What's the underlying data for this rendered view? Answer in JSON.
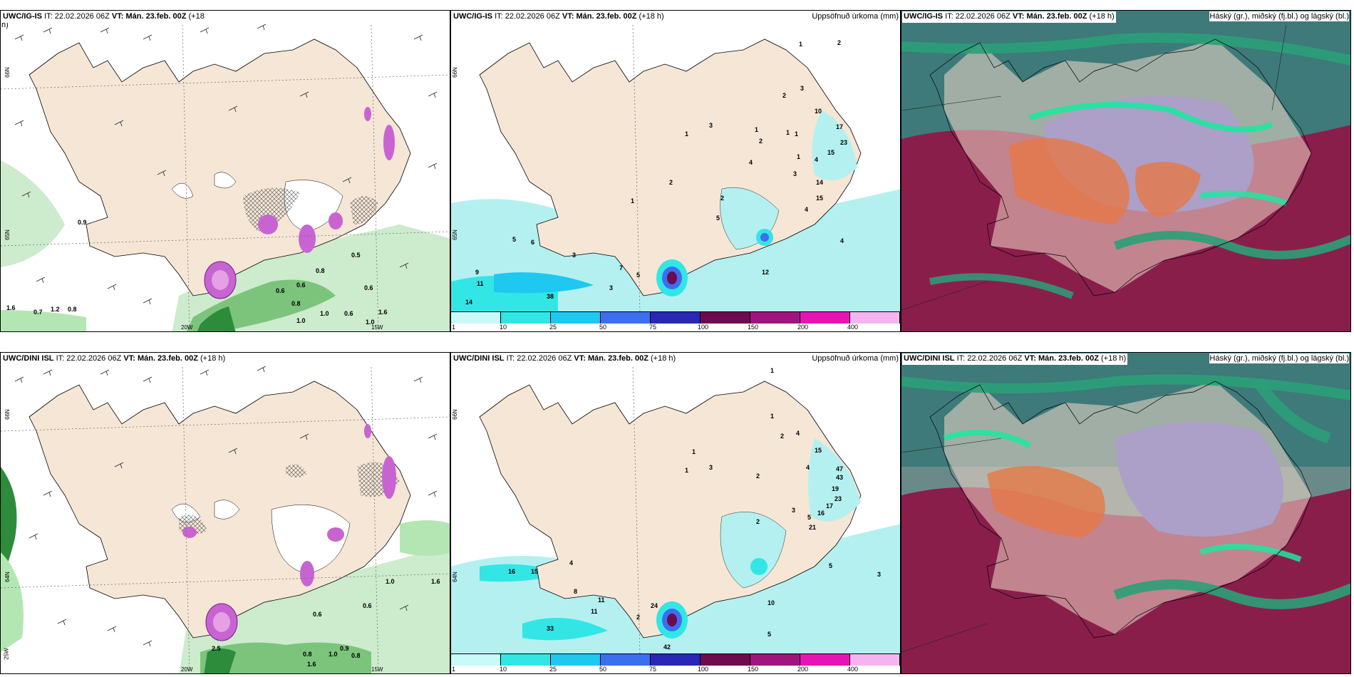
{
  "rows": [
    {
      "panels": [
        {
          "model": "UWC/IG-IS",
          "it_label": "IT:",
          "it": "22.02.2026 06Z",
          "vt_label": "VT:",
          "vt": "Mán. 23.feb. 00Z",
          "lead": "(+18",
          "lead_wrap": "h)",
          "right_title": "",
          "kind": "wind",
          "values": [
            "0.9",
            "0.5",
            "0.8",
            "0.6",
            "0.6",
            "0.8",
            "0.6",
            "1.0",
            "0.6",
            "1.0",
            "1.0",
            "1.6",
            "0.7",
            "1.2",
            "0.8",
            "1.6"
          ],
          "lat_labels": [
            "66N",
            "65N"
          ],
          "lon_labels": [
            "20W",
            "15W"
          ]
        },
        {
          "model": "UWC/IG-IS",
          "it_label": "IT:",
          "it": "22.02.2026 06Z",
          "vt_label": "VT:",
          "vt": "Mán. 23.feb. 00Z",
          "lead": "(+18 h)",
          "right_title": "Uppsöfnuð úrkoma (mm)",
          "kind": "precip",
          "values": [
            "1",
            "2",
            "2",
            "3",
            "10",
            "3",
            "1",
            "1",
            "1",
            "2",
            "1",
            "17",
            "23",
            "15",
            "1",
            "4",
            "4",
            "2",
            "3",
            "14",
            "1",
            "15",
            "4",
            "5",
            "2",
            "4",
            "5",
            "6",
            "3",
            "7",
            "5",
            "9",
            "11",
            "3",
            "38",
            "14",
            "12"
          ],
          "lat_labels": [
            "66N",
            "65N"
          ]
        },
        {
          "model": "UWC/IG-IS",
          "it_label": "IT:",
          "it": "22.02.2026 06Z",
          "vt_label": "VT:",
          "vt": "Mán. 23.feb. 00Z",
          "lead": "(+18 h)",
          "right_title": "Háský (gr.), miðský (fj.bl.) og lágský (bl.)",
          "kind": "cloud"
        }
      ]
    },
    {
      "panels": [
        {
          "model": "UWC/DINI ISL",
          "it_label": "IT:",
          "it": "22.02.2026 06Z",
          "vt_label": "VT:",
          "vt": "Mán. 23.feb. 00Z",
          "lead": "(+18 h)",
          "right_title": "",
          "kind": "wind",
          "values": [
            "1.0",
            "1.6",
            "0.6",
            "0.6",
            "2.5",
            "0.8",
            "1.0",
            "0.9",
            "0.8",
            "1.6"
          ],
          "lat_labels": [
            "66N",
            "64N"
          ],
          "lon_labels": [
            "20W",
            "15W",
            "25W"
          ]
        },
        {
          "model": "UWC/DINI ISL",
          "it_label": "IT:",
          "it": "22.02.2026 06Z",
          "vt_label": "VT:",
          "vt": "Mán. 23.feb. 00Z",
          "lead": "(+18 h)",
          "right_title": "Uppsöfnuð úrkoma (mm)",
          "kind": "precip",
          "values": [
            "1",
            "1",
            "2",
            "4",
            "1",
            "3",
            "1",
            "15",
            "2",
            "47",
            "43",
            "4",
            "19",
            "23",
            "17",
            "3",
            "16",
            "5",
            "21",
            "2",
            "5",
            "3",
            "16",
            "15",
            "4",
            "8",
            "11",
            "11",
            "24",
            "2",
            "10",
            "33",
            "42",
            "5"
          ],
          "lat_labels": [
            "66N",
            "64N"
          ]
        },
        {
          "model": "UWC/DINI ISL",
          "it_label": "IT:",
          "it": "22.02.2026 06Z",
          "vt_label": "VT:",
          "vt": "Mán. 23.feb. 00Z",
          "lead": "(+18 h)",
          "right_title": "Háský (gr.), miðský (fj.bl.) og lágský (bl.)",
          "kind": "cloud"
        }
      ]
    }
  ],
  "colorbar": {
    "labels": [
      "1",
      "10",
      "25",
      "50",
      "75",
      "100",
      "150",
      "200",
      "400"
    ],
    "colors": [
      "#c8fafa",
      "#32e6e6",
      "#1ec8f0",
      "#3c6ef0",
      "#2828b4",
      "#6e0a50",
      "#a0147e",
      "#e614b4",
      "#f5b4f0"
    ]
  },
  "colors": {
    "land": "#f5e6d6",
    "sea_precip": "#b4f0f0",
    "wind_green_light": "#b4e6b4",
    "wind_green_dark": "#2d8c3c",
    "snow_magenta": "#b450c8",
    "cloud_high": "#8a1e4b",
    "cloud_mid": "#5a5ac8",
    "cloud_low": "#2aa078",
    "cloud_orange": "#e67846"
  }
}
